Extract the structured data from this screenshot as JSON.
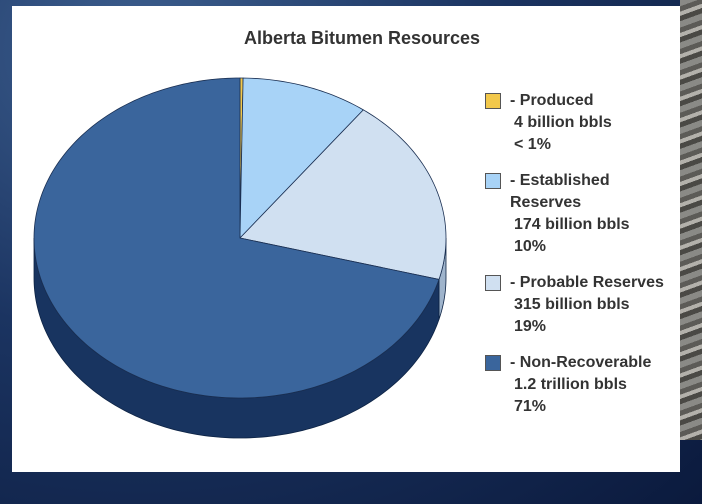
{
  "chart_data": {
    "type": "pie",
    "title": "Alberta Bitumen Resources",
    "categories": [
      "- Produced",
      "- Established Reserves",
      "- Probable Reserves",
      "- Non-Recoverable"
    ],
    "values": [
      0.24,
      10,
      19,
      71
    ],
    "value_labels": [
      "< 1%",
      "10%",
      "19%",
      "71%"
    ],
    "amount_labels": [
      "4 billion bbls",
      "174 billion bbls",
      "315 billion bbls",
      "1.2 trillion bbls"
    ],
    "colors": [
      "#f2c84b",
      "#a8d3f7",
      "#d0e0f1",
      "#3a659c"
    ],
    "side_colors": [
      "#b8922a",
      "#7aa8cf",
      "#9fb4cc",
      "#183460"
    ],
    "legend": "right"
  }
}
